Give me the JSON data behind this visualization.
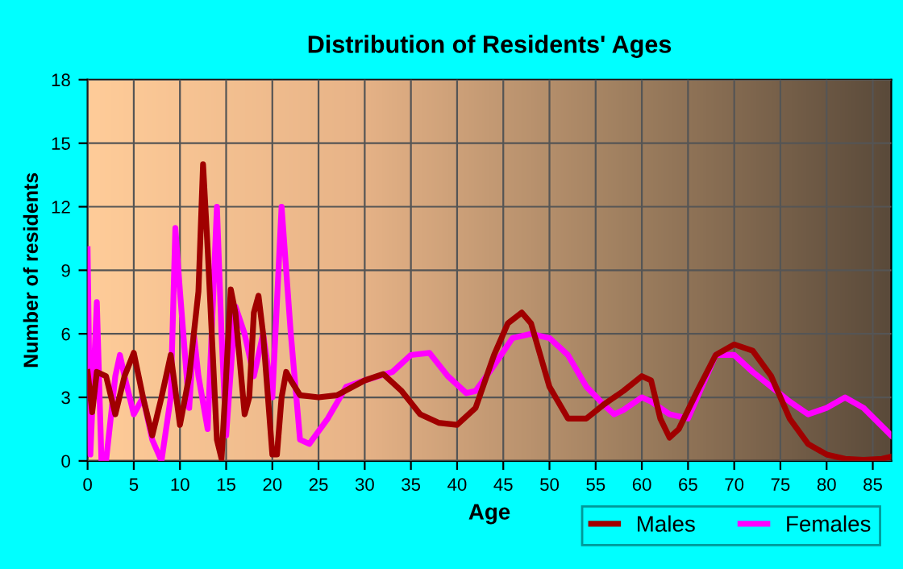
{
  "chart_data": {
    "type": "line",
    "title": "Distribution of Residents' Ages",
    "xlabel": "Age",
    "ylabel": "Number of residents",
    "xlim": [
      0,
      87
    ],
    "xticks": [
      0,
      5,
      10,
      15,
      20,
      25,
      30,
      35,
      40,
      45,
      50,
      55,
      60,
      65,
      70,
      75,
      80,
      85
    ],
    "ylim": [
      0,
      18
    ],
    "yticks": [
      0,
      3,
      6,
      9,
      12,
      15,
      18
    ],
    "grid": true,
    "legend": "bottom right",
    "marker": "none",
    "line_style": "solid",
    "series": [
      {
        "name": "Males",
        "color": "#a00000",
        "x": [
          0,
          0.5,
          1,
          2,
          3,
          4,
          5,
          6,
          7,
          8,
          9,
          10,
          11,
          12,
          12.5,
          13,
          14,
          14.5,
          15,
          15.5,
          16,
          17,
          17.5,
          18,
          18.5,
          19,
          20,
          20.5,
          21,
          21.5,
          22,
          23,
          25,
          27,
          30,
          32,
          34,
          36,
          38,
          40,
          42,
          44,
          45.5,
          47,
          48,
          50,
          52,
          54,
          56,
          58,
          60,
          61,
          62,
          63,
          64,
          66,
          68,
          70,
          72,
          74,
          76,
          78,
          80,
          82,
          84,
          86,
          87
        ],
        "values": [
          4.2,
          2.3,
          4.2,
          4,
          2.2,
          4,
          5.1,
          3,
          1.2,
          3,
          5,
          1.7,
          4,
          8,
          14,
          10,
          1,
          0.1,
          4,
          8.1,
          7,
          2.2,
          3,
          7,
          7.8,
          6,
          0.3,
          0.3,
          3,
          4.2,
          3.8,
          3.1,
          3,
          3.1,
          3.8,
          4.1,
          3.3,
          2.2,
          1.8,
          1.7,
          2.5,
          5,
          6.5,
          7,
          6.5,
          3.5,
          2,
          2,
          2.7,
          3.3,
          4,
          3.8,
          2,
          1.1,
          1.5,
          3.3,
          5,
          5.5,
          5.2,
          4,
          2,
          0.8,
          0.3,
          0.1,
          0.05,
          0.1,
          0.2
        ]
      },
      {
        "name": "Females",
        "color": "#ff00ff",
        "x": [
          0,
          0.3,
          1,
          1.5,
          2,
          3,
          3.5,
          4,
          5,
          6,
          7,
          8,
          9,
          9.5,
          10,
          11,
          11.5,
          12,
          13,
          14,
          14.5,
          15,
          16,
          17,
          18,
          19,
          20,
          21,
          22,
          23,
          24,
          26,
          28,
          30,
          33,
          35,
          37,
          39,
          41,
          42,
          44,
          46,
          48,
          50,
          52,
          54,
          56,
          57,
          58,
          60,
          61,
          63,
          65,
          66,
          68,
          70,
          72,
          74,
          76,
          78,
          80,
          82,
          84,
          87
        ],
        "values": [
          10,
          0.3,
          7.5,
          0,
          0,
          4,
          5,
          4,
          2.2,
          3,
          1,
          0,
          3,
          11,
          8,
          2.5,
          6,
          4,
          1.5,
          12,
          6,
          1.2,
          7.3,
          6,
          4,
          6,
          3,
          12,
          6,
          1,
          0.8,
          2,
          3.5,
          3.8,
          4.2,
          5,
          5.1,
          4,
          3.2,
          3.3,
          4.5,
          5.8,
          6,
          5.8,
          5,
          3.5,
          2.6,
          2.2,
          2.4,
          3,
          2.8,
          2.2,
          2,
          3,
          5,
          5,
          4.2,
          3.5,
          2.8,
          2.2,
          2.5,
          3,
          2.5,
          1.2
        ]
      }
    ]
  }
}
